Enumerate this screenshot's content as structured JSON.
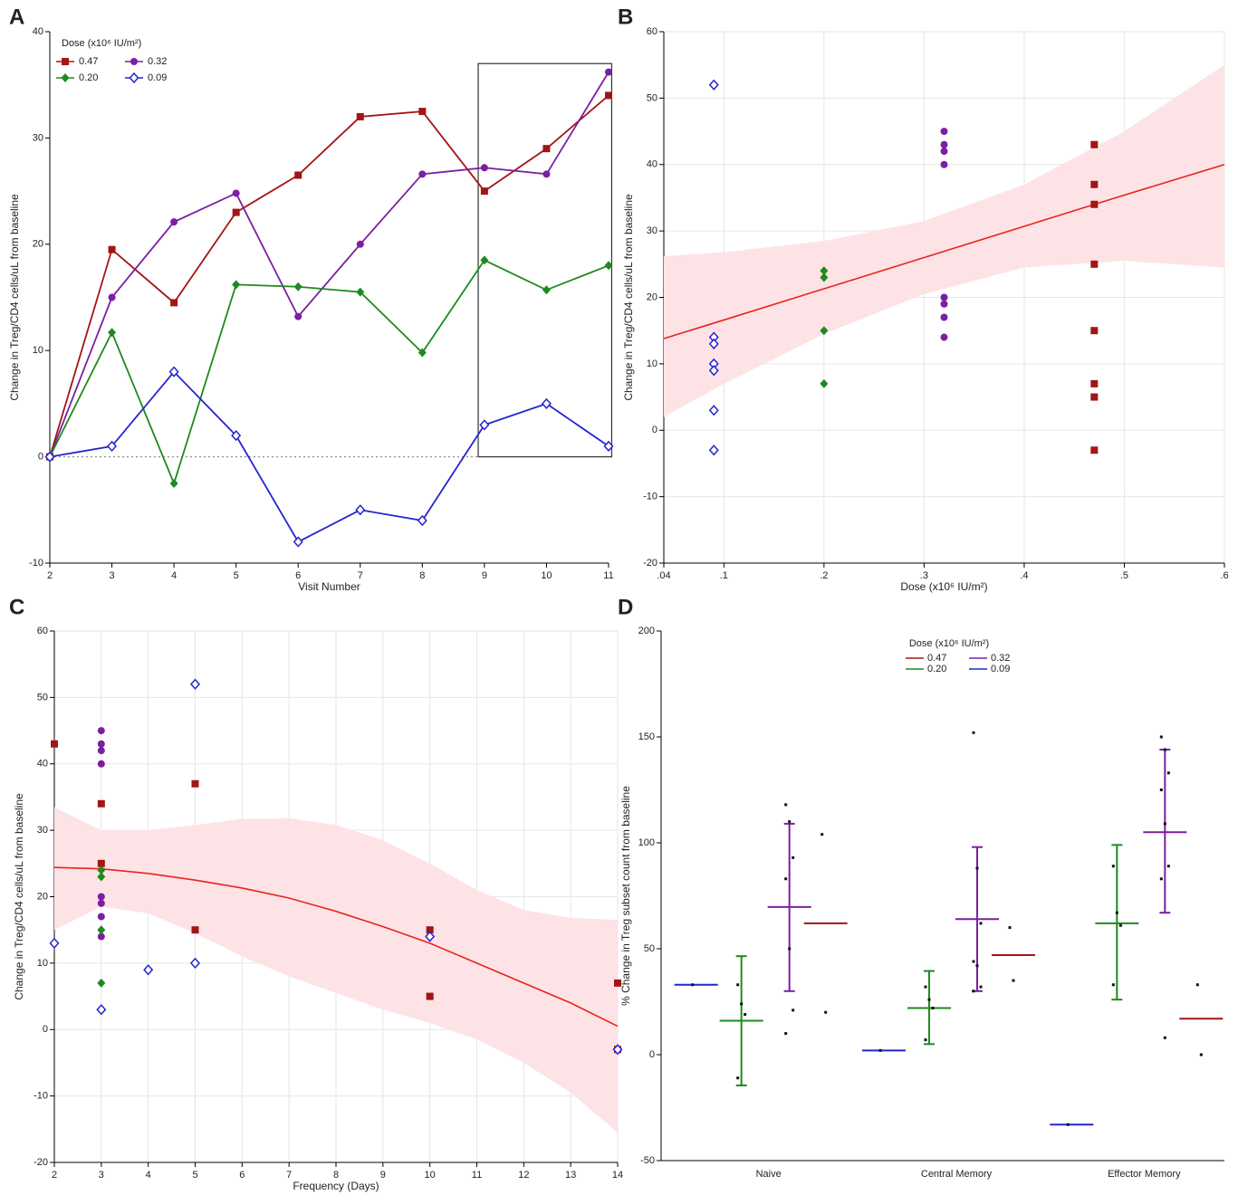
{
  "chart_data": [
    {
      "type": "line",
      "panel_label": "A",
      "x_label": "Visit Number",
      "y_label": "Change in Treg/CD4 cells/uL from baseline",
      "legend_title": "Dose (x10⁶ IU/m²)",
      "x": [
        2,
        3,
        4,
        5,
        6,
        7,
        8,
        9,
        10,
        11
      ],
      "xlim": [
        2,
        11
      ],
      "xticks": [
        2,
        3,
        4,
        5,
        6,
        7,
        8,
        9,
        10,
        11
      ],
      "ylim": [
        -10,
        40
      ],
      "yticks": [
        -10,
        0,
        10,
        20,
        30,
        40
      ],
      "grid": false,
      "hline": 0,
      "highlight": {
        "xlim": [
          8.9,
          11.05
        ],
        "ylim": [
          0,
          37
        ]
      },
      "series": [
        {
          "name": "0.47",
          "color": "#a31515",
          "marker": "square",
          "values": [
            0,
            19.5,
            14.5,
            23,
            26.5,
            32,
            32.5,
            25,
            29,
            34
          ]
        },
        {
          "name": "0.32",
          "color": "#7b1fa2",
          "marker": "circle",
          "values": [
            0,
            15,
            22.1,
            24.8,
            13.2,
            20,
            26.6,
            27.2,
            26.6,
            36.2
          ]
        },
        {
          "name": "0.20",
          "color": "#1e8a1e",
          "marker": "diamond",
          "values": [
            0,
            11.7,
            -2.5,
            16.2,
            16,
            15.5,
            9.8,
            18.5,
            15.7,
            18
          ]
        },
        {
          "name": "0.09",
          "color": "#2424d0",
          "marker": "open-diamond",
          "values": [
            0,
            1,
            8,
            2,
            -8,
            -5,
            -6,
            3,
            5,
            1
          ]
        }
      ]
    },
    {
      "type": "scatter",
      "panel_label": "B",
      "x_label": "Dose (x10⁶ IU/m²)",
      "y_label": "Change in Treg/CD4 cells/uL from baseline",
      "xlim": [
        0.04,
        0.6
      ],
      "xticks": [
        {
          "value": 0.04,
          "label": ".04"
        },
        {
          "value": 0.1,
          "label": ".1"
        },
        {
          "value": 0.2,
          "label": ".2"
        },
        {
          "value": 0.3,
          "label": ".3"
        },
        {
          "value": 0.4,
          "label": ".4"
        },
        {
          "value": 0.5,
          "label": ".5"
        },
        {
          "value": 0.6,
          "label": ".6"
        }
      ],
      "ylim": [
        -20,
        60
      ],
      "yticks": [
        -20,
        -10,
        0,
        10,
        20,
        30,
        40,
        50,
        60
      ],
      "grid": true,
      "fit": {
        "color": "#e8231e",
        "band_color": "#fde3e6",
        "x": [
          0.04,
          0.1,
          0.2,
          0.3,
          0.4,
          0.5,
          0.6
        ],
        "values": [
          13.8,
          16.6,
          21.3,
          26,
          30.7,
          35.4,
          40
        ],
        "upper": [
          26.2,
          26.8,
          28.5,
          31.5,
          37,
          45,
          55
        ],
        "lower": [
          2,
          7,
          14.5,
          20.5,
          24.5,
          25.5,
          24.5
        ]
      },
      "series": [
        {
          "color": "#a31515",
          "marker": "square",
          "x": [
            0.47,
            0.47,
            0.47,
            0.47,
            0.47,
            0.47,
            0.47,
            0.47
          ],
          "values": [
            43,
            37,
            34,
            25,
            15,
            7,
            5,
            -3
          ]
        },
        {
          "color": "#7b1fa2",
          "marker": "circle",
          "x": [
            0.32,
            0.32,
            0.32,
            0.32,
            0.32,
            0.32,
            0.32,
            0.32
          ],
          "values": [
            45,
            43,
            42,
            40,
            20,
            19,
            17,
            14
          ]
        },
        {
          "color": "#1e8a1e",
          "marker": "diamond",
          "x": [
            0.2,
            0.2,
            0.2,
            0.2
          ],
          "values": [
            24,
            23,
            15,
            7
          ]
        },
        {
          "color": "#2424d0",
          "marker": "open-diamond",
          "x": [
            0.09,
            0.09,
            0.09,
            0.09,
            0.09,
            0.09,
            0.09
          ],
          "values": [
            52,
            14,
            13,
            10,
            9,
            3,
            -3
          ]
        }
      ]
    },
    {
      "type": "scatter",
      "panel_label": "C",
      "x_label": "Frequency (Days)",
      "y_label": "Change in Treg/CD4 cells/uL from baseline",
      "xlim": [
        2,
        14
      ],
      "xticks": [
        2,
        3,
        4,
        5,
        6,
        7,
        8,
        9,
        10,
        11,
        12,
        13,
        14
      ],
      "ylim": [
        -20,
        60
      ],
      "yticks": [
        -20,
        -10,
        0,
        10,
        20,
        30,
        40,
        50,
        60
      ],
      "grid": true,
      "fit": {
        "color": "#e8231e",
        "band_color": "#fde3e6",
        "x": [
          2,
          3,
          4,
          5,
          6,
          7,
          8,
          9,
          10,
          11,
          12,
          13,
          14
        ],
        "values": [
          24.4,
          24.2,
          23.5,
          22.5,
          21.3,
          19.8,
          17.8,
          15.5,
          13,
          10,
          7,
          4,
          0.5
        ],
        "upper": [
          33.5,
          30,
          30,
          30.8,
          31.7,
          31.8,
          30.8,
          28.5,
          25,
          21,
          18,
          16.8,
          16.5
        ],
        "lower": [
          15,
          18.5,
          17.5,
          14.5,
          11,
          8,
          5.5,
          3,
          1,
          -1.5,
          -5,
          -9.5,
          -15.5
        ]
      },
      "series": [
        {
          "color": "#a31515",
          "marker": "square",
          "x": [
            2,
            3,
            3,
            5,
            5,
            10,
            10,
            14,
            14
          ],
          "values": [
            43,
            34,
            25,
            37,
            15,
            15,
            5,
            7,
            -3
          ]
        },
        {
          "color": "#7b1fa2",
          "marker": "circle",
          "x": [
            3,
            3,
            3,
            3,
            3,
            3,
            3,
            3
          ],
          "values": [
            45,
            43,
            42,
            40,
            20,
            19,
            17,
            14
          ]
        },
        {
          "color": "#1e8a1e",
          "marker": "diamond",
          "x": [
            3,
            3,
            3,
            3
          ],
          "values": [
            24,
            23,
            15,
            7
          ]
        },
        {
          "color": "#2424d0",
          "marker": "open-diamond",
          "x": [
            2,
            3,
            4,
            5,
            5,
            10,
            14
          ],
          "values": [
            13,
            3,
            9,
            52,
            10,
            14,
            -3
          ]
        }
      ]
    },
    {
      "type": "dot",
      "panel_label": "D",
      "y_label": "% Change in Treg subset count from baseline",
      "legend_title": "Dose (x10⁶ IU/m²)",
      "categories": [
        "Naive",
        "Central Memory",
        "Effector Memory"
      ],
      "ylim": [
        -50,
        200
      ],
      "yticks": [
        -50,
        0,
        50,
        100,
        150,
        200
      ],
      "grid": false,
      "series": [
        {
          "name": "0.47",
          "color": "#a31515",
          "means": [
            62,
            47,
            17
          ],
          "error_low": [
            null,
            null,
            null
          ],
          "error_high": [
            null,
            null,
            null
          ],
          "points": [
            [
              104,
              20
            ],
            [
              60,
              35
            ],
            [
              33,
              0
            ]
          ]
        },
        {
          "name": "0.32",
          "color": "#7b1fa2",
          "means": [
            69.7,
            64,
            105
          ],
          "error_low": [
            30,
            30,
            67
          ],
          "error_high": [
            109,
            98,
            144
          ],
          "points": [
            [
              118,
              110,
              93,
              83,
              50,
              21,
              10
            ],
            [
              152,
              88,
              62,
              44,
              42,
              32,
              30
            ],
            [
              150,
              144,
              133,
              125,
              109,
              89,
              83,
              8
            ]
          ]
        },
        {
          "name": "0.20",
          "color": "#1e8a1e",
          "means": [
            16,
            22,
            62
          ],
          "error_low": [
            -14.5,
            5,
            26
          ],
          "error_high": [
            46.5,
            39.5,
            99
          ],
          "points": [
            [
              33,
              24,
              19,
              -11
            ],
            [
              32,
              26,
              22,
              7
            ],
            [
              89,
              67,
              61,
              33
            ]
          ]
        },
        {
          "name": "0.09",
          "color": "#2424d0",
          "means": [
            33,
            2,
            -33
          ],
          "error_low": [
            null,
            null,
            null
          ],
          "error_high": [
            null,
            null,
            null
          ],
          "points": [
            [
              33
            ],
            [
              2
            ],
            [
              -33
            ]
          ]
        }
      ]
    }
  ]
}
